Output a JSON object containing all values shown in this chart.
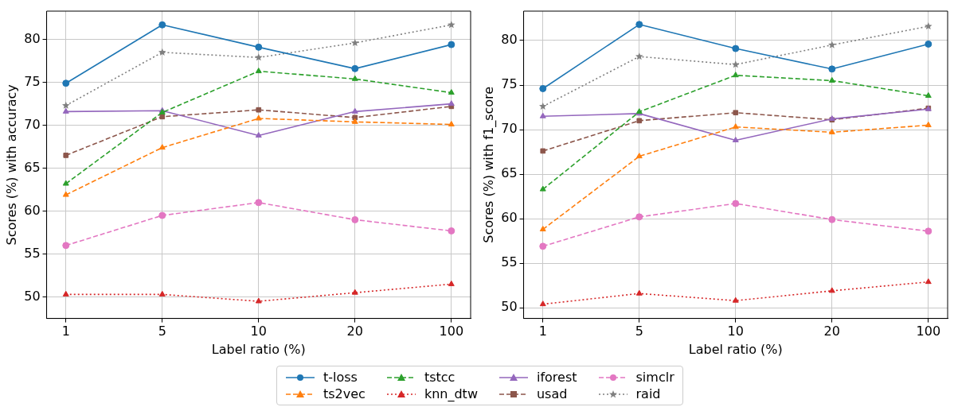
{
  "chart_data": [
    {
      "type": "line",
      "xlabel": "Label ratio (%)",
      "ylabel": "Scores (%) with accuracy",
      "categories": [
        "1",
        "5",
        "10",
        "20",
        "100"
      ],
      "ylim": [
        47.5,
        83.3
      ],
      "yticks": [
        50,
        55,
        60,
        65,
        70,
        75,
        80
      ],
      "grid": true,
      "legend": "bottom",
      "series": [
        {
          "name": "t-loss",
          "color": "#1f77b4",
          "marker": "circle",
          "line_style": "solid",
          "values": [
            74.9,
            81.7,
            79.1,
            76.6,
            79.4
          ]
        },
        {
          "name": "ts2vec",
          "color": "#ff7f0e",
          "marker": "triangle",
          "line_style": "dashed",
          "values": [
            61.9,
            67.4,
            70.8,
            70.4,
            70.1
          ]
        },
        {
          "name": "tstcc",
          "color": "#2ca02c",
          "marker": "triangle",
          "line_style": "dashed",
          "values": [
            63.2,
            71.5,
            76.3,
            75.4,
            73.8
          ]
        },
        {
          "name": "knn_dtw",
          "color": "#d62728",
          "marker": "triangle",
          "line_style": "dotted",
          "values": [
            50.3,
            50.3,
            49.5,
            50.5,
            51.5
          ]
        },
        {
          "name": "iforest",
          "color": "#9467bd",
          "marker": "triangle",
          "line_style": "solid",
          "values": [
            71.6,
            71.7,
            68.8,
            71.6,
            72.5
          ]
        },
        {
          "name": "usad",
          "color": "#8c564b",
          "marker": "square",
          "line_style": "dashed",
          "values": [
            66.5,
            71.0,
            71.8,
            70.9,
            72.2
          ]
        },
        {
          "name": "simclr",
          "color": "#e377c2",
          "marker": "circle",
          "line_style": "dashed",
          "values": [
            56.0,
            59.5,
            61.0,
            59.0,
            57.7
          ]
        },
        {
          "name": "raid",
          "color": "#7f7f7f",
          "marker": "star",
          "line_style": "dotted",
          "values": [
            72.3,
            78.5,
            77.9,
            79.6,
            81.7
          ]
        }
      ]
    },
    {
      "type": "line",
      "xlabel": "Label ratio (%)",
      "ylabel": "Scores (%) with f1_score",
      "categories": [
        "1",
        "5",
        "10",
        "20",
        "100"
      ],
      "ylim": [
        48.8,
        83.3
      ],
      "yticks": [
        50,
        55,
        60,
        65,
        70,
        75,
        80
      ],
      "grid": true,
      "legend": "bottom",
      "series": [
        {
          "name": "t-loss",
          "color": "#1f77b4",
          "marker": "circle",
          "line_style": "solid",
          "values": [
            74.6,
            81.8,
            79.1,
            76.8,
            79.6
          ]
        },
        {
          "name": "ts2vec",
          "color": "#ff7f0e",
          "marker": "triangle",
          "line_style": "dashed",
          "values": [
            58.8,
            67.0,
            70.3,
            69.7,
            70.5
          ]
        },
        {
          "name": "tstcc",
          "color": "#2ca02c",
          "marker": "triangle",
          "line_style": "dashed",
          "values": [
            63.3,
            72.0,
            76.1,
            75.5,
            73.8
          ]
        },
        {
          "name": "knn_dtw",
          "color": "#d62728",
          "marker": "triangle",
          "line_style": "dotted",
          "values": [
            50.4,
            51.6,
            50.8,
            51.9,
            52.9
          ]
        },
        {
          "name": "iforest",
          "color": "#9467bd",
          "marker": "triangle",
          "line_style": "solid",
          "values": [
            71.5,
            71.8,
            68.8,
            71.2,
            72.3
          ]
        },
        {
          "name": "usad",
          "color": "#8c564b",
          "marker": "square",
          "line_style": "dashed",
          "values": [
            67.6,
            71.0,
            71.9,
            71.1,
            72.4
          ]
        },
        {
          "name": "simclr",
          "color": "#e377c2",
          "marker": "circle",
          "line_style": "dashed",
          "values": [
            56.9,
            60.2,
            61.7,
            59.9,
            58.6
          ]
        },
        {
          "name": "raid",
          "color": "#7f7f7f",
          "marker": "star",
          "line_style": "dotted",
          "values": [
            72.6,
            78.2,
            77.3,
            79.5,
            81.6
          ]
        }
      ]
    }
  ]
}
